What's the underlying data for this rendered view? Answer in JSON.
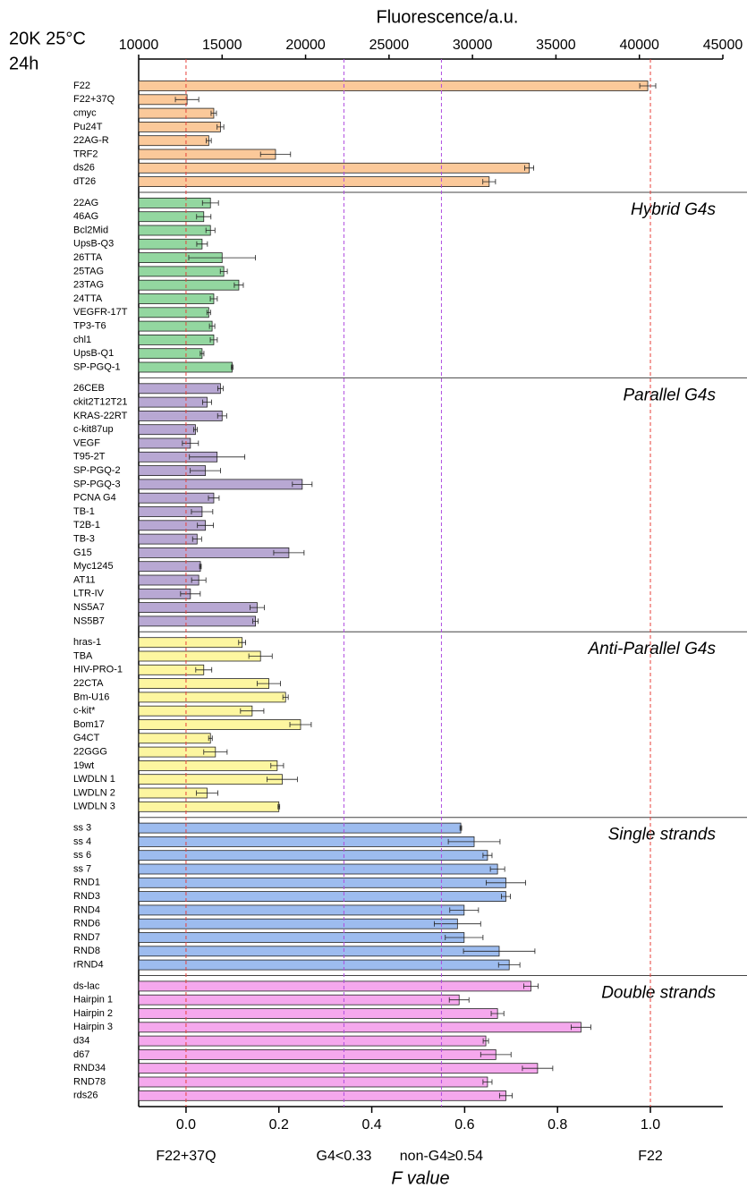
{
  "corner_text": [
    "20K 25°C",
    "24h"
  ],
  "chart_data": {
    "type": "bar",
    "orientation": "horizontal",
    "xlabel": "Fluorescence/a.u.",
    "xlim": [
      10000,
      45000
    ],
    "xticks": [
      10000,
      15000,
      20000,
      25000,
      30000,
      35000,
      40000,
      45000
    ],
    "x2label": "F value",
    "x2lim": [
      -0.102,
      1.156
    ],
    "x2ticks": [
      {
        "value": 0,
        "label": "0.0"
      },
      0.2,
      0.4,
      0.6,
      0.8,
      {
        "value": 1,
        "label": "1.0"
      }
    ],
    "highlight_color": "#e8201c",
    "reference_lines": [
      {
        "value": 0,
        "label": "F22+37Q",
        "color": "#e8403a"
      },
      {
        "value": 0.34,
        "label": "G4<0.33",
        "color": "#b04de0"
      },
      {
        "value": 0.55,
        "label": "non-G4≥0.54",
        "color": "#b04de0"
      },
      {
        "value": 1,
        "label": "F22",
        "color": "#e8403a"
      }
    ],
    "groups": [
      {
        "color": "#fbc99a",
        "highlight_indices": [
          4,
          5
        ],
        "categories": [
          "F22",
          "F22+37Q",
          "cmyc",
          "Pu24T",
          "22AG-R",
          "TRF2",
          "ds26",
          "dT26"
        ],
        "values": [
          40500,
          12900,
          14500,
          14900,
          14200,
          18200,
          33400,
          31000
        ],
        "errors": [
          480,
          700,
          160,
          200,
          150,
          900,
          270,
          380
        ]
      },
      {
        "name": "Hybrid G4s",
        "name_color": "#2a9088",
        "color": "#93d7a0",
        "highlight_indices": [],
        "categories": [
          "22AG",
          "46AG",
          "Bcl2Mid",
          "UpsB-Q3",
          "26TTA",
          "25TAG",
          "23TAG",
          "24TTA",
          "VEGFR-17T",
          "TP3-T6",
          "chl1",
          "UpsB-Q1",
          "SP-PGQ-1"
        ],
        "values": [
          14300,
          13900,
          14300,
          13800,
          15000,
          15100,
          16000,
          14500,
          14200,
          14400,
          14500,
          13800,
          15600
        ],
        "errors": [
          480,
          430,
          270,
          320,
          2000,
          210,
          270,
          210,
          110,
          160,
          210,
          110,
          50
        ]
      },
      {
        "name": "Parallel G4s",
        "name_color": "#7b2a8a",
        "color": "#b8a8d3",
        "highlight_indices": [
          16,
          17
        ],
        "categories": [
          "26CEB",
          "ckit2T12T21",
          "KRAS-22RT",
          "c-kit87up",
          "VEGF",
          "T95-2T",
          "SP-PGQ-2",
          "SP-PGQ-3",
          "PCNA G4",
          "TB-1",
          "T2B-1",
          "TB-3",
          "G15",
          "Myc1245",
          "AT11",
          "LTR-IV",
          "NS5A7",
          "NS5B7"
        ],
        "values": [
          14900,
          14100,
          15000,
          13400,
          13100,
          14700,
          14000,
          19800,
          14500,
          13800,
          14000,
          13500,
          19000,
          13700,
          13600,
          13100,
          17100,
          17000
        ],
        "errors": [
          160,
          270,
          270,
          110,
          480,
          1660,
          910,
          590,
          320,
          640,
          480,
          270,
          910,
          50,
          430,
          590,
          430,
          160
        ]
      },
      {
        "name": "Anti-Parallel G4s",
        "name_color": "#7a6d12",
        "color": "#fdf6a0",
        "highlight_indices": [],
        "categories": [
          "hras-1",
          "TBA",
          "HIV-PRO-1",
          "22CTA",
          "Bm-U16",
          "c-kit*",
          "Bom17",
          "G4CT",
          "22GGG",
          "19wt",
          "LWDLN 1",
          "LWDLN 2",
          "LWDLN 3"
        ],
        "values": [
          16200,
          17300,
          13900,
          17800,
          18800,
          16800,
          19700,
          14300,
          14600,
          18300,
          18600,
          14100,
          18400
        ],
        "errors": [
          210,
          700,
          480,
          700,
          160,
          700,
          640,
          110,
          700,
          380,
          910,
          640,
          50
        ]
      },
      {
        "name": "Single strands",
        "name_color": "#1a1ae0",
        "color": "#9dbcef",
        "highlight_indices": [
          10
        ],
        "categories": [
          "ss 3",
          "ss 4",
          "ss 6",
          "ss 7",
          "RND1",
          "RND3",
          "RND4",
          "RND6",
          "RND7",
          "RND8",
          "rRND4"
        ],
        "values": [
          29300,
          30100,
          30900,
          31500,
          32000,
          32000,
          29500,
          29100,
          29500,
          31600,
          32200
        ],
        "errors": [
          50,
          1550,
          270,
          430,
          1180,
          270,
          860,
          1390,
          1130,
          2140,
          640
        ]
      },
      {
        "name": "Double strands",
        "name_color": "#f07ae8",
        "color": "#f5a8ed",
        "highlight_indices": [
          8
        ],
        "categories": [
          "ds-lac",
          "Hairpin 1",
          "Hairpin 2",
          "Hairpin 3",
          "d34",
          "d67",
          "RND34",
          "RND78",
          "rds26"
        ],
        "values": [
          33500,
          29200,
          31500,
          36500,
          30800,
          31400,
          33900,
          30900,
          32000
        ],
        "errors": [
          430,
          590,
          380,
          590,
          160,
          910,
          910,
          270,
          380
        ]
      }
    ]
  }
}
